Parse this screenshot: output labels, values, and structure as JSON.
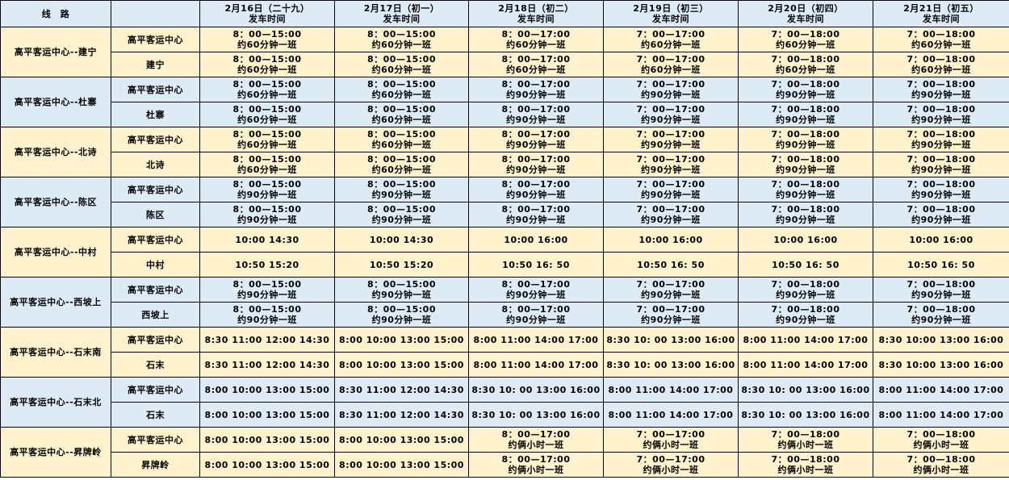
{
  "header": {
    "route": "线　路",
    "station": "",
    "dates": [
      "2月16日（二十九）\n发车时间",
      "2月17日（初一）\n发车时间",
      "2月18日（初二）\n发车时间",
      "2月19日（初三）\n发车时间",
      "2月20日（初四）\n发车时间",
      "2月21日（初五）\n发车时间"
    ]
  },
  "colors": {
    "yellow": "#fff2cc",
    "blue": "#ddebf7"
  },
  "routes": [
    {
      "name": "高平客运中心--建宁",
      "rows": [
        {
          "station": "高平客运中心",
          "times": [
            "8：00—15:00\n约60分钟一班",
            "8：00—15:00\n约60分钟一班",
            "8：00—17:00\n约60分钟一班",
            "7：00—17:00\n约60分钟一班",
            "7：00—18:00\n约60分钟一班",
            "7：00—18:00\n约60分钟一班"
          ]
        },
        {
          "station": "建宁",
          "times": [
            "8：00—15:00\n约60分钟一班",
            "8：00—15:00\n约60分钟一班",
            "8：00—17:00\n约60分钟一班",
            "7：00—17:00\n约60分钟一班",
            "7：00—18:00\n约60分钟一班",
            "7：00—18:00\n约60分钟一班"
          ]
        }
      ]
    },
    {
      "name": "高平客运中心--杜寨",
      "rows": [
        {
          "station": "高平客运中心",
          "times": [
            "8：00—15:00\n约60分钟一班",
            "8：00—15:00\n约60分钟一班",
            "8：00—17:00\n约90分钟一班",
            "7：00—17:00\n约90分钟一班",
            "7：00—18:00\n约90分钟一班",
            "7：00—18:00\n约90分钟一班"
          ]
        },
        {
          "station": "杜寨",
          "times": [
            "8：00—15:00\n约60分钟一班",
            "8：00—15:00\n约60分钟一班",
            "8：00—17:00\n约90分钟一班",
            "7：00—17:00\n约90分钟一班",
            "7：00—18:00\n约90分钟一班",
            "7：00—18:00\n约90分钟一班"
          ]
        }
      ]
    },
    {
      "name": "高平客运中心--北诗",
      "rows": [
        {
          "station": "高平客运中心",
          "times": [
            "8：00—15:00\n约60分钟一班",
            "8：00—15:00\n约60分钟一班",
            "8：00—17:00\n约90分钟一班",
            "7：00—17:00\n约90分钟一班",
            "7：00—18:00\n约90分钟一班",
            "7：00—18:00\n约90分钟一班"
          ]
        },
        {
          "station": "北诗",
          "times": [
            "8：00—15:00\n约60分钟一班",
            "8：00—15:00\n约60分钟一班",
            "8：00—17:00\n约90分钟一班",
            "7：00—17:00\n约90分钟一班",
            "7：00—18:00\n约90分钟一班",
            "7：00—18:00\n约90分钟一班"
          ]
        }
      ]
    },
    {
      "name": "高平客运中心--陈区",
      "rows": [
        {
          "station": "高平客运中心",
          "times": [
            "8：00—15:00\n约90分钟一班",
            "8：00—15:00\n约90分钟一班",
            "8：00—17:00\n约90分钟一班",
            "7：00—17:00\n约90分钟一班",
            "7：00—18:00\n约90分钟一班",
            "7：00—18:00\n约90分钟一班"
          ]
        },
        {
          "station": "陈区",
          "times": [
            "8：00—15:00\n约90分钟一班",
            "8：00—15:00\n约90分钟一班",
            "8：00—17:00\n约90分钟一班",
            "7：00—17:00\n约90分钟一班",
            "7：00—18:00\n约90分钟一班",
            "7：00—18:00\n约90分钟一班"
          ]
        }
      ]
    },
    {
      "name": "高平客运中心--中村",
      "rows": [
        {
          "station": "高平客运中心",
          "times": [
            "10:00  14:30",
            "10:00  14:30",
            "10:00  16:00",
            "10:00  16:00",
            "10:00  16:00",
            "10:00  16:00"
          ]
        },
        {
          "station": "中村",
          "times": [
            "10:50  15:20",
            "10:50  15:20",
            "10:50  16: 50",
            "10:50  16: 50",
            "10:50  16: 50",
            "10:50  16: 50"
          ]
        }
      ]
    },
    {
      "name": "高平客运中心--西坡上",
      "rows": [
        {
          "station": "高平客运中心",
          "times": [
            "8：00—15:00\n约90分钟一班",
            "8：00—15:00\n约90分钟一班",
            "8：00—17:00\n约90分钟一班",
            "7：00—17:00\n约90分钟一班",
            "7：00—18:00\n约90分钟一班",
            "7：00—18:00\n约90分钟一班"
          ]
        },
        {
          "station": "西坡上",
          "times": [
            "8：00—15:00\n约90分钟一班",
            "8：00—15:00\n约90分钟一班",
            "8：00—17:00\n约90分钟一班",
            "7：00—17:00\n约90分钟一班",
            "7：00—18:00\n约90分钟一班",
            "7：00—18:00\n约90分钟一班"
          ]
        }
      ]
    },
    {
      "name": "高平客运中心--石末南",
      "rows": [
        {
          "station": "高平客运中心",
          "times": [
            "8:30 11:00 12:00 14:30",
            "8:00 10:00 13:00 15:00",
            "8:00 11:00 14:00 17:00",
            "8:30 10: 00 13:00 16:00",
            "8:00 11:00 14:00 17:00",
            "8:30 10:00 13:00 16:00"
          ]
        },
        {
          "station": "石末",
          "times": [
            "8:30 11:00 12:00 14:30",
            "8:00 10:00 13:00 15:00",
            "8:00 11:00 14:00 17:00",
            "8:30 10: 00 13:00 16:00",
            "8:00 11:00 14:00 17:00",
            "8:30 10:00 13:00 16:00"
          ]
        }
      ]
    },
    {
      "name": "高平客运中心--石末北",
      "rows": [
        {
          "station": "高平客运中心",
          "times": [
            "8:00 10:00 13:00 15:00",
            "8:30 11:00 12:00 14:30",
            "8:30 10: 00 13:00 16:00",
            "8:00 11:00 14:00 17:00",
            "8:30 10: 00 13:00 16:00",
            "8:00 11:00 14:00 17:00"
          ]
        },
        {
          "station": "石末",
          "times": [
            "8:00 10:00 13:00 15:00",
            "8:30 11:00 12:00 14:30",
            "8:30 10: 00 13:00 16:00",
            "8:00 11:00 14:00 17:00",
            "8:30 10: 00 13:00 16:00",
            "8:00 11:00 14:00 17:00"
          ]
        }
      ]
    },
    {
      "name": "高平客运中心--昇牌岭",
      "rows": [
        {
          "station": "高平客运中心",
          "times": [
            "8:00 10:00 13:00 15:00",
            "8:00 10:00 13:00 15:00",
            "8：00—17:00\n约俩小时一班",
            "7：00—17:00\n约俩小时一班",
            "7：00—18:00\n约俩小时一班",
            "7：00—18:00\n约俩小时一班"
          ]
        },
        {
          "station": "昇牌岭",
          "times": [
            "8:00 10:00 13:00 15:00",
            "8:00 10:00 13:00 15:00",
            "8：00—17:00\n约俩小时一班",
            "7：00—17:00\n约俩小时一班",
            "7：00—18:00\n约俩小时一班",
            "7：00—18:00\n约俩小时一班"
          ]
        }
      ]
    }
  ]
}
